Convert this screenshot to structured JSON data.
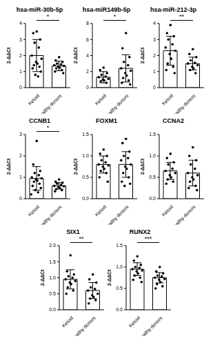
{
  "chart_data": [
    {
      "type": "bar",
      "title": "hsa-miR-30b-5p",
      "y_label": "2-ΔΔCt",
      "categories": [
        "Keloid",
        "Healthy donors"
      ],
      "values": [
        2.0,
        1.35
      ],
      "error": [
        1.0,
        0.3
      ],
      "points": [
        [
          3.5,
          3.4,
          3.0,
          2.8,
          2.5,
          2.0,
          1.8,
          1.6,
          1.5,
          1.4,
          1.3,
          1.2,
          1.0,
          0.8,
          0.7
        ],
        [
          1.9,
          1.7,
          1.6,
          1.5,
          1.45,
          1.4,
          1.35,
          1.3,
          1.25,
          1.2,
          1.1,
          1.0,
          0.9
        ]
      ],
      "ylim": [
        0,
        4
      ],
      "yticks": [
        0,
        1,
        2,
        3,
        4
      ],
      "annotation": "*",
      "color": "#ffffff"
    },
    {
      "type": "bar",
      "title": "hsa-miR149b-5p",
      "y_label": "2-ΔΔCt",
      "categories": [
        "Keloid",
        "Healthy donors"
      ],
      "values": [
        1.3,
        2.4
      ],
      "error": [
        0.7,
        1.7
      ],
      "points": [
        [
          2.5,
          2.2,
          1.8,
          1.6,
          1.4,
          1.3,
          1.1,
          1.0,
          0.9,
          0.8,
          0.6
        ],
        [
          6.8,
          4.9,
          3.8,
          3.2,
          2.8,
          2.4,
          2.1,
          1.8,
          1.5,
          1.2,
          0.9,
          0.6,
          0.4
        ]
      ],
      "ylim": [
        0,
        8
      ],
      "yticks": [
        0,
        2,
        4,
        6,
        8
      ],
      "annotation": "*",
      "color": "#ffffff"
    },
    {
      "type": "bar",
      "title": "hsa-miR-212-3p",
      "y_label": "2-ΔΔCt",
      "categories": [
        "Keloid",
        "Healthy donors"
      ],
      "values": [
        2.3,
        1.5
      ],
      "error": [
        0.9,
        0.4
      ],
      "points": [
        [
          3.9,
          3.4,
          3.2,
          3.0,
          2.7,
          2.5,
          2.3,
          2.1,
          1.8,
          1.5,
          1.3,
          1.1,
          0.9
        ],
        [
          2.4,
          2.1,
          1.9,
          1.7,
          1.55,
          1.5,
          1.4,
          1.3,
          1.2,
          1.1,
          0.9
        ]
      ],
      "ylim": [
        0,
        4
      ],
      "yticks": [
        0,
        1,
        2,
        3,
        4
      ],
      "annotation": "**",
      "color": "#ffffff"
    },
    {
      "type": "bar",
      "title": "CCNB1",
      "y_label": "2-ΔΔCt",
      "categories": [
        "Keloid",
        "Healthy donors"
      ],
      "values": [
        0.95,
        0.6
      ],
      "error": [
        0.55,
        0.15
      ],
      "points": [
        [
          2.7,
          1.6,
          1.3,
          1.2,
          1.1,
          1.0,
          0.95,
          0.9,
          0.85,
          0.8,
          0.7,
          0.6,
          0.5,
          0.4,
          0.3,
          0.2
        ],
        [
          0.9,
          0.8,
          0.75,
          0.7,
          0.65,
          0.6,
          0.58,
          0.55,
          0.5,
          0.45,
          0.4,
          0.35
        ]
      ],
      "ylim": [
        0,
        3
      ],
      "yticks": [
        0,
        1,
        2,
        3
      ],
      "annotation": "*",
      "color": "#ffffff"
    },
    {
      "type": "bar",
      "title": "FOXM1",
      "y_label": "2-ΔΔCt",
      "categories": [
        "Keloid",
        "Healthy donors"
      ],
      "values": [
        0.8,
        0.8
      ],
      "error": [
        0.2,
        0.3
      ],
      "points": [
        [
          1.15,
          1.05,
          1.0,
          0.9,
          0.85,
          0.8,
          0.78,
          0.75,
          0.7,
          0.65,
          0.6,
          0.5,
          0.4
        ],
        [
          1.4,
          1.3,
          1.1,
          1.0,
          0.95,
          0.9,
          0.8,
          0.75,
          0.7,
          0.6,
          0.5,
          0.4,
          0.35,
          0.3
        ]
      ],
      "ylim": [
        0,
        1.5
      ],
      "yticks": [
        {
          "value": 0,
          "label": "0.0"
        },
        0.5,
        {
          "value": 1,
          "label": "1.0"
        },
        1.5
      ],
      "color": "#ffffff"
    },
    {
      "type": "bar",
      "title": "CCNA2",
      "y_label": "2-ΔΔCt",
      "categories": [
        "Keloid",
        "Healthy donors"
      ],
      "values": [
        0.65,
        0.6
      ],
      "error": [
        0.2,
        0.3
      ],
      "points": [
        [
          1.05,
          0.95,
          0.85,
          0.8,
          0.7,
          0.65,
          0.6,
          0.55,
          0.5,
          0.45,
          0.4,
          0.35
        ],
        [
          1.2,
          1.0,
          0.9,
          0.8,
          0.7,
          0.6,
          0.55,
          0.5,
          0.45,
          0.4,
          0.3,
          0.25,
          0.2
        ]
      ],
      "ylim": [
        0,
        1.5
      ],
      "yticks": [
        {
          "value": 0,
          "label": "0.0"
        },
        0.5,
        {
          "value": 1,
          "label": "1.0"
        },
        1.5
      ],
      "color": "#ffffff"
    },
    {
      "type": "bar",
      "title": "SIX1",
      "y_label": "2-ΔΔCt",
      "categories": [
        "Keloid",
        "Healthy donors"
      ],
      "values": [
        0.95,
        0.6
      ],
      "error": [
        0.3,
        0.25
      ],
      "points": [
        [
          1.7,
          1.2,
          1.1,
          1.05,
          1.0,
          0.95,
          0.9,
          0.85,
          0.8,
          0.7,
          0.6,
          0.5
        ],
        [
          1.1,
          0.95,
          0.85,
          0.7,
          0.65,
          0.6,
          0.5,
          0.45,
          0.4,
          0.35,
          0.3,
          0.2
        ]
      ],
      "ylim": [
        0,
        2
      ],
      "yticks": [
        {
          "value": 0,
          "label": "0.0"
        },
        0.5,
        {
          "value": 1,
          "label": "1.0"
        },
        1.5,
        {
          "value": 2,
          "label": "2.0"
        }
      ],
      "annotation": "**",
      "color": "#ffffff"
    },
    {
      "type": "bar",
      "title": "RUNX2",
      "y_label": "2-ΔΔCt",
      "categories": [
        "Keloid",
        "Healthy donors"
      ],
      "values": [
        0.95,
        0.75
      ],
      "error": [
        0.15,
        0.12
      ],
      "points": [
        [
          1.25,
          1.15,
          1.05,
          1.0,
          0.98,
          0.95,
          0.92,
          0.9,
          0.85,
          0.8,
          0.75,
          0.7,
          0.65
        ],
        [
          1.0,
          0.9,
          0.85,
          0.8,
          0.78,
          0.75,
          0.72,
          0.7,
          0.65,
          0.6,
          0.55,
          0.5
        ]
      ],
      "ylim": [
        0,
        1.5
      ],
      "yticks": [
        {
          "value": 0,
          "label": "0.0"
        },
        0.5,
        {
          "value": 1,
          "label": "1.0"
        },
        1.5
      ],
      "annotation": "***",
      "color": "#ffffff"
    }
  ]
}
